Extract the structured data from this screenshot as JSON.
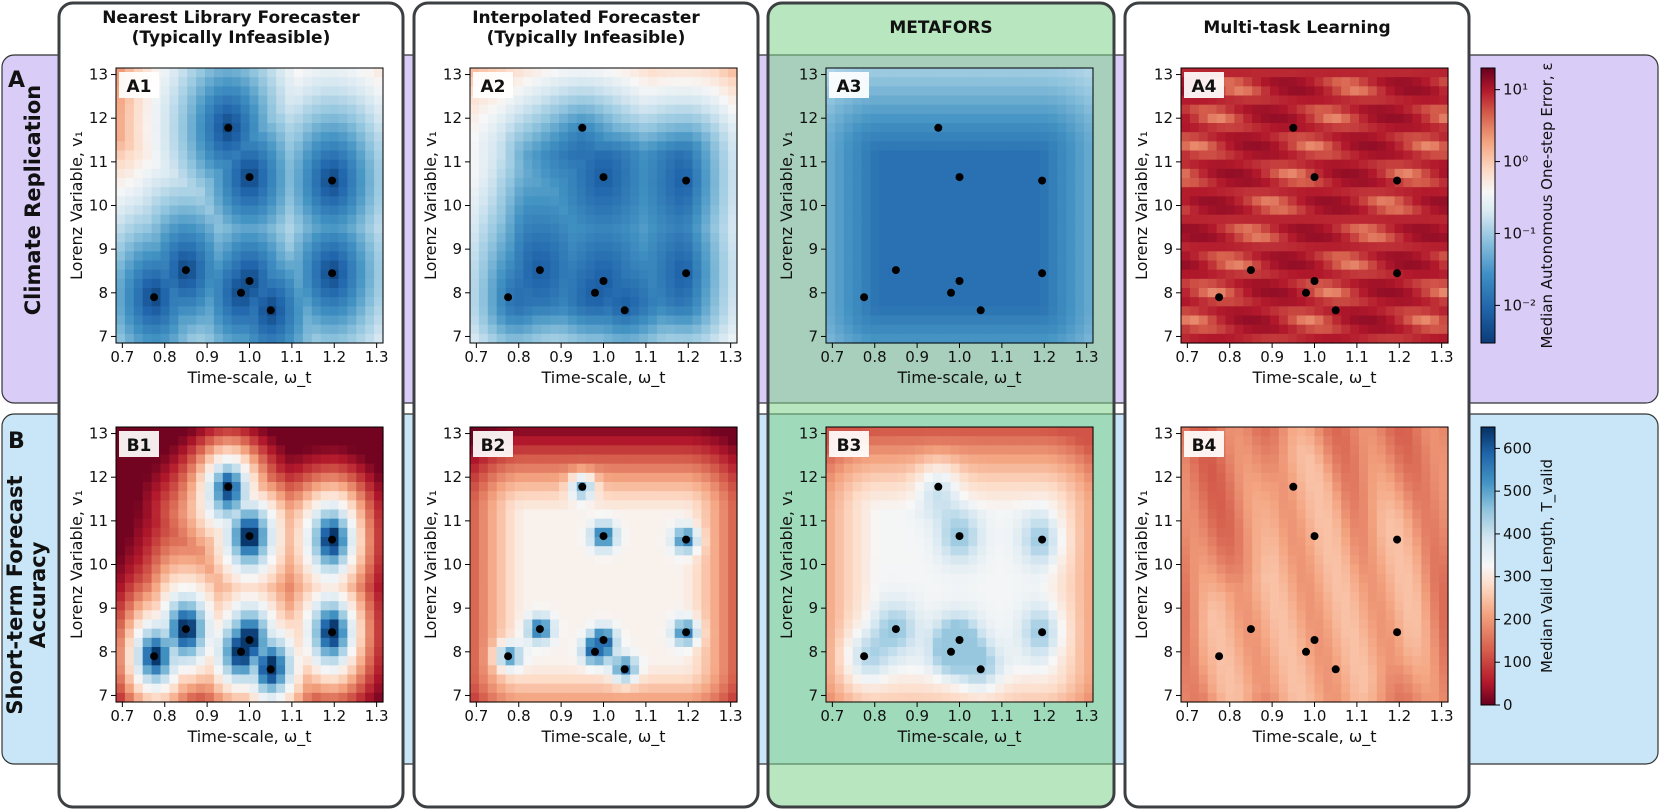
{
  "columns": [
    "Nearest Library Forecaster\n(Typically Infeasible)",
    "Interpolated Forecaster\n(Typically Infeasible)",
    "METAFORS",
    "Multi-task Learning"
  ],
  "rows": [
    {
      "letter": "A",
      "title": "Climate Replication"
    },
    {
      "letter": "B",
      "title": "Short-term Forecast\nAccuracy"
    }
  ],
  "panel_labels": [
    [
      "A1",
      "A2",
      "A3",
      "A4"
    ],
    [
      "B1",
      "B2",
      "B3",
      "B4"
    ]
  ],
  "colors": {
    "row_a_bg": "#d9ccf7",
    "row_b_bg": "#c8e6f7",
    "metafors_bg": "#7dd18a",
    "frame": "#3c4043",
    "dot": "#000000"
  },
  "colorbars": {
    "A": {
      "label": "Median Autonomous One-step Error, ε",
      "scale": "log",
      "range": [
        0.003,
        20
      ],
      "ticks": [
        "10¹",
        "10⁰",
        "10⁻¹",
        "10⁻²"
      ],
      "tick_values": [
        10,
        1,
        0.1,
        0.01
      ]
    },
    "B": {
      "label": "Median Valid Length, T_valid",
      "scale": "linear",
      "range": [
        0,
        650
      ],
      "ticks": [
        "600",
        "500",
        "400",
        "300",
        "200",
        "100",
        "0"
      ],
      "tick_values": [
        600,
        500,
        400,
        300,
        200,
        100,
        0
      ]
    }
  },
  "chart_data": {
    "type": "heatmap",
    "xlabel": "Time-scale, ω_t",
    "ylabel": "Lorenz Variable, v₁",
    "xlim": [
      0.685,
      1.315
    ],
    "ylim": [
      6.85,
      13.15
    ],
    "xticks": [
      "0.7",
      "0.8",
      "0.9",
      "1.0",
      "1.1",
      "1.2",
      "1.3"
    ],
    "yticks": [
      "7",
      "8",
      "9",
      "10",
      "11",
      "12",
      "13"
    ],
    "library_points": [
      {
        "x": 0.775,
        "y": 7.9
      },
      {
        "x": 0.85,
        "y": 8.52
      },
      {
        "x": 0.95,
        "y": 11.78
      },
      {
        "x": 0.98,
        "y": 8.0
      },
      {
        "x": 1.0,
        "y": 10.65
      },
      {
        "x": 1.0,
        "y": 8.27
      },
      {
        "x": 1.05,
        "y": 7.6
      },
      {
        "x": 1.195,
        "y": 10.57
      },
      {
        "x": 1.195,
        "y": 8.45
      }
    ],
    "panels": [
      {
        "id": "A1",
        "metric": "median one-step error",
        "model": "nearest library forecaster"
      },
      {
        "id": "A2",
        "metric": "median one-step error",
        "model": "interpolated forecaster"
      },
      {
        "id": "A3",
        "metric": "median one-step error",
        "model": "METAFORS"
      },
      {
        "id": "A4",
        "metric": "median one-step error",
        "model": "multi-task learning"
      },
      {
        "id": "B1",
        "metric": "median valid length",
        "model": "nearest library forecaster"
      },
      {
        "id": "B2",
        "metric": "median valid length",
        "model": "interpolated forecaster"
      },
      {
        "id": "B3",
        "metric": "median valid length",
        "model": "METAFORS"
      },
      {
        "id": "B4",
        "metric": "median valid length",
        "model": "multi-task learning"
      }
    ]
  }
}
